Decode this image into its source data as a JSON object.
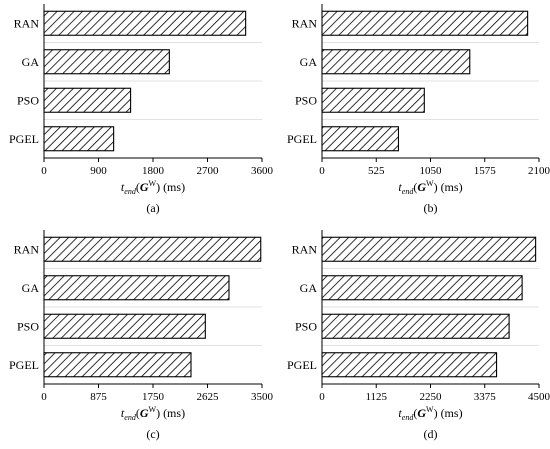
{
  "chart_data": [
    {
      "type": "bar",
      "orientation": "horizontal",
      "panel_label": "(a)",
      "categories": [
        "RAN",
        "GA",
        "PSO",
        "PGEL"
      ],
      "values": [
        3330,
        2070,
        1430,
        1150
      ],
      "xlim": [
        0,
        3600
      ],
      "xticks": [
        "0",
        "900",
        "1800",
        "2700",
        "3600"
      ],
      "xlabel": {
        "t": "t",
        "sub": "end",
        "open": "(",
        "G": "G",
        "sup": "W",
        "close": ")",
        "unit": " (ms)"
      },
      "grid": "y"
    },
    {
      "type": "bar",
      "orientation": "horizontal",
      "panel_label": "(b)",
      "categories": [
        "RAN",
        "GA",
        "PSO",
        "PGEL"
      ],
      "values": [
        1990,
        1430,
        990,
        740
      ],
      "xlim": [
        0,
        2100
      ],
      "xticks": [
        "0",
        "525",
        "1050",
        "1575",
        "2100"
      ],
      "xlabel": {
        "t": "t",
        "sub": "end",
        "open": "(",
        "G": "G",
        "sup": "W",
        "close": ")",
        "unit": " (ms)"
      },
      "grid": "y"
    },
    {
      "type": "bar",
      "orientation": "horizontal",
      "panel_label": "(c)",
      "categories": [
        "RAN",
        "GA",
        "PSO",
        "PGEL"
      ],
      "values": [
        3480,
        2970,
        2590,
        2360
      ],
      "xlim": [
        0,
        3500
      ],
      "xticks": [
        "0",
        "875",
        "1750",
        "2625",
        "3500"
      ],
      "xlabel": {
        "t": "t",
        "sub": "end",
        "open": "(",
        "G": "G",
        "sup": "W",
        "close": ")",
        "unit": " (ms)"
      },
      "grid": "y"
    },
    {
      "type": "bar",
      "orientation": "horizontal",
      "panel_label": "(d)",
      "categories": [
        "RAN",
        "GA",
        "PSO",
        "PGEL"
      ],
      "values": [
        4430,
        4150,
        3880,
        3620
      ],
      "xlim": [
        0,
        4500
      ],
      "xticks": [
        "0",
        "1125",
        "2250",
        "3375",
        "4500"
      ],
      "xlabel": {
        "t": "t",
        "sub": "end",
        "open": "(",
        "G": "G",
        "sup": "W",
        "close": ")",
        "unit": " (ms)"
      },
      "grid": "y"
    }
  ]
}
